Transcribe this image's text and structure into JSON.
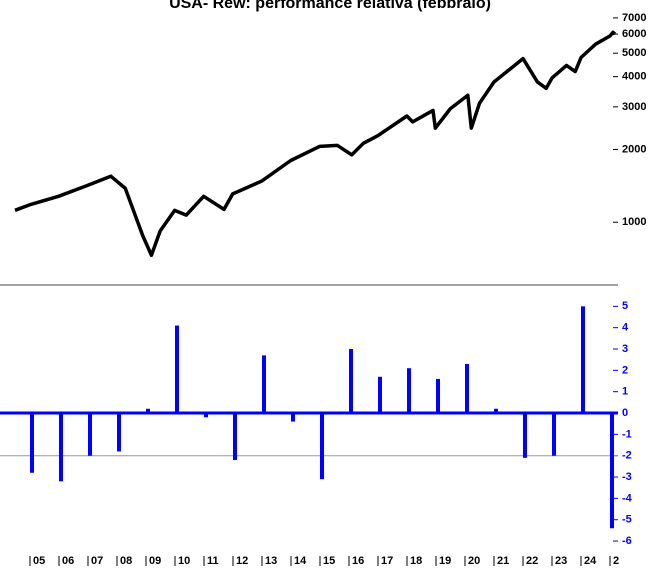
{
  "chart_data": [
    {
      "type": "line",
      "title": "USA- Rew: performance relativa (febbraio)",
      "log_scale": true,
      "xlim": [
        2004.5,
        2025.17
      ],
      "ylim": [
        550,
        8300
      ],
      "yticks": [
        1000,
        2000,
        3000,
        4000,
        5000,
        6000,
        7000
      ],
      "series": [
        {
          "color": "#000000",
          "x": [
            2004.5,
            2005,
            2006,
            2007,
            2007.8,
            2008.3,
            2008.9,
            2009.2,
            2009.5,
            2010,
            2010.4,
            2011,
            2011.7,
            2012,
            2013,
            2014,
            2015,
            2015.6,
            2016.1,
            2016.5,
            2017,
            2018,
            2018.2,
            2018.9,
            2018.98,
            2019.5,
            2020.1,
            2020.22,
            2020.5,
            2021,
            2022,
            2022.5,
            2022.8,
            2023,
            2023.5,
            2023.8,
            2024,
            2024.5,
            2025,
            2025.1,
            2025.17
          ],
          "values": [
            1120,
            1180,
            1280,
            1420,
            1550,
            1380,
            880,
            730,
            920,
            1120,
            1070,
            1280,
            1130,
            1310,
            1480,
            1800,
            2060,
            2080,
            1900,
            2120,
            2280,
            2750,
            2600,
            2900,
            2450,
            2950,
            3350,
            2450,
            3100,
            3800,
            4750,
            3800,
            3580,
            3950,
            4450,
            4200,
            4800,
            5450,
            5900,
            6100,
            6000
          ]
        }
      ]
    },
    {
      "type": "bar",
      "color": "#0000ff",
      "ylim": [
        -6.7,
        6
      ],
      "yticks": [
        -6,
        -5,
        -4,
        -3,
        -2,
        -1,
        0,
        1,
        2,
        3,
        4,
        5
      ],
      "reference_line": -2,
      "categories": [
        "05",
        "06",
        "07",
        "08",
        "09",
        "10",
        "11",
        "12",
        "13",
        "14",
        "15",
        "16",
        "17",
        "18",
        "19",
        "20",
        "21",
        "22",
        "23",
        "24",
        "2"
      ],
      "values": [
        -2.8,
        -3.2,
        -2.0,
        -1.8,
        0.2,
        4.1,
        -0.2,
        -2.2,
        2.7,
        -0.4,
        -3.1,
        3.0,
        1.7,
        2.1,
        1.6,
        2.3,
        0.2,
        -2.1,
        -2.0,
        5.0,
        -5.4
      ]
    }
  ]
}
